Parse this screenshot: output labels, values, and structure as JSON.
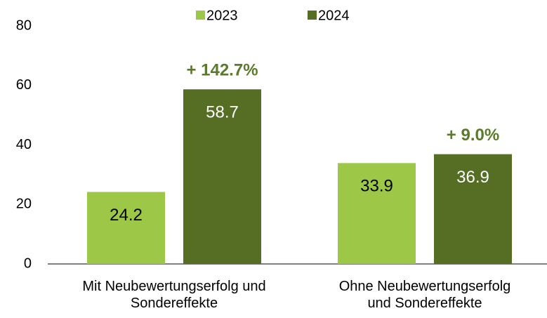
{
  "chart_data": {
    "type": "bar",
    "categories": [
      "Mit Neubewertungserfolg und Sondereffekte",
      "Ohne Neubewertungserfolg und Sondereffekte"
    ],
    "series": [
      {
        "name": "2023",
        "color": "#9dc746",
        "label_color": "#000000",
        "values": [
          24.2,
          33.9
        ]
      },
      {
        "name": "2024",
        "color": "#566d24",
        "label_color": "#ffffff",
        "values": [
          58.7,
          36.9
        ]
      }
    ],
    "annotations": [
      "+ 142.7%",
      "+ 9.0%"
    ],
    "annotation_color": "#5b7a2b",
    "ylim": [
      0,
      80
    ],
    "yticks": [
      0,
      20,
      40,
      60,
      80
    ],
    "grid": false,
    "legend": "top"
  }
}
